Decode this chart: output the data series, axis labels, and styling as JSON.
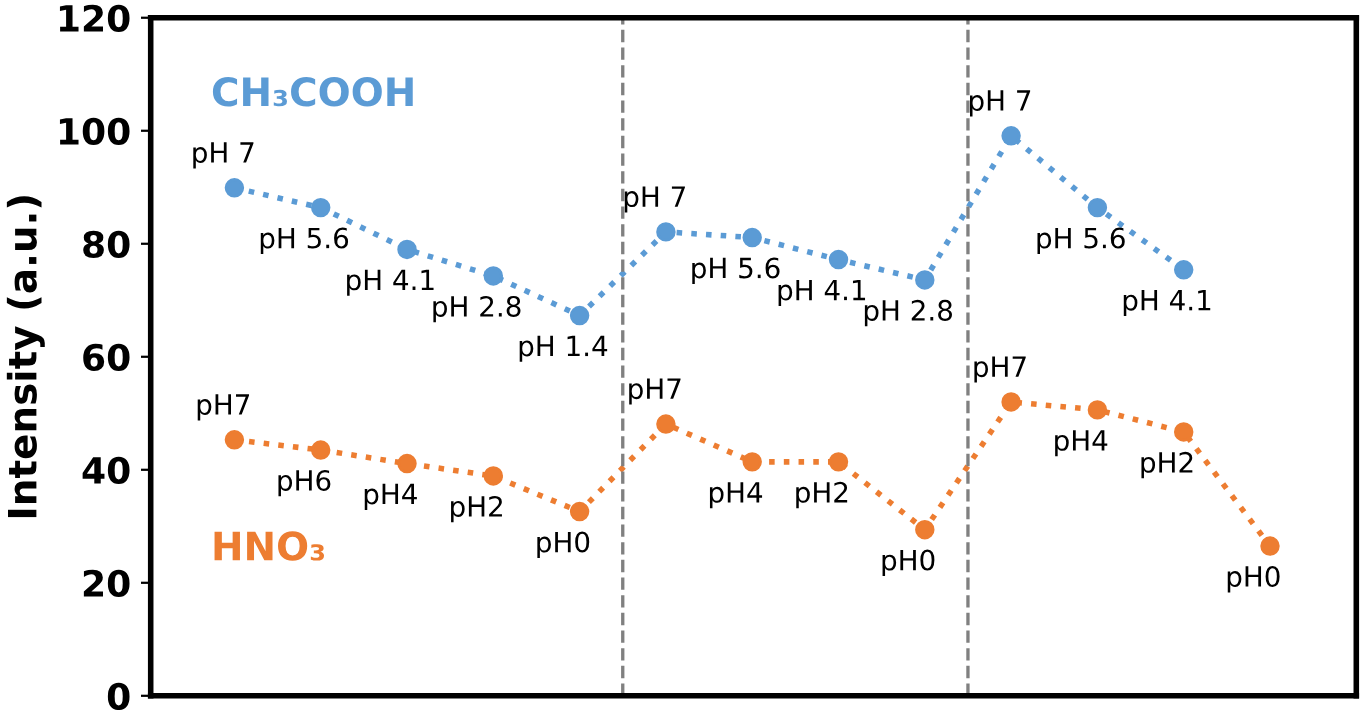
{
  "chart_data": {
    "type": "line",
    "ylabel": "Intensity (a.u.)",
    "categories": [
      null,
      null,
      null,
      null,
      null,
      null,
      null,
      null,
      null,
      null,
      null,
      null,
      null
    ],
    "ylim": [
      0,
      120
    ],
    "yticks": [
      0,
      20,
      40,
      60,
      80,
      100,
      120
    ],
    "tick_labels": "y",
    "grid": false,
    "marker": "circle",
    "line_style": "dotted",
    "series": [
      {
        "name": "CH₃COOH",
        "color": "#5b9bd5",
        "values": [
          89.9,
          86.4,
          79,
          74.3,
          67.3,
          82.1,
          81.1,
          77.2,
          73.6,
          99.1,
          86.4,
          75.4,
          null
        ],
        "value_labels": [
          "pH 7",
          "pH 5.6",
          "pH 4.1",
          "pH 2.8",
          "pH 1.4",
          "pH 7",
          "pH 5.6",
          "pH 4.1",
          "pH 2.8",
          "pH 7",
          "pH 5.6",
          "pH 4.1",
          null
        ]
      },
      {
        "name": "HNO₃",
        "color": "#ed7d31",
        "values": [
          45.3,
          43.5,
          41.1,
          38.9,
          32.6,
          48.1,
          41.4,
          41.4,
          29.4,
          52,
          50.6,
          46.7,
          26.5
        ],
        "value_labels": [
          "pH7",
          "pH6",
          "pH4",
          "pH2",
          "pH0",
          "pH7",
          "pH4",
          "pH2",
          "pH0",
          "pH7",
          "pH4",
          "pH2",
          "pH0"
        ]
      }
    ]
  }
}
